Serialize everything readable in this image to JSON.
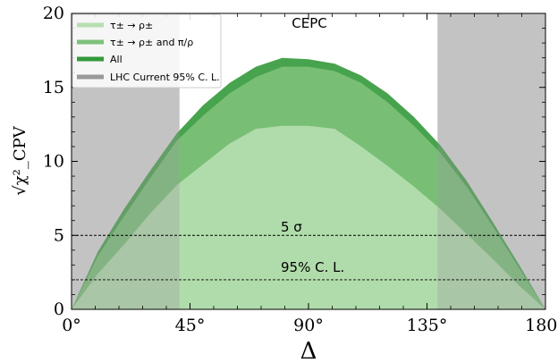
{
  "chart_data": {
    "type": "area",
    "title": "CEPC",
    "xlabel": "Δ",
    "ylabel": "√χ²_CPV",
    "xlim": [
      0,
      180
    ],
    "ylim": [
      0,
      20
    ],
    "x_ticks": [
      "0°",
      "45°",
      "90°",
      "135°",
      "180°"
    ],
    "y_ticks": [
      "0",
      "5",
      "10",
      "15",
      "20"
    ],
    "legend_position": "upper-left",
    "excluded_regions": [
      {
        "name": "LHC Current 95% C. L.",
        "ranges": [
          [
            0,
            41
          ],
          [
            139,
            180
          ]
        ],
        "color": "#d8d8d8"
      }
    ],
    "reference_lines": [
      {
        "y": 5,
        "label": "5 σ"
      },
      {
        "y": 2,
        "label": "95% C. L."
      }
    ],
    "series": [
      {
        "name": "All",
        "color": "#33993a",
        "x": [
          0,
          10,
          20,
          30,
          40,
          50,
          60,
          70,
          80,
          90,
          100,
          110,
          120,
          130,
          140,
          150,
          160,
          170,
          180
        ],
        "y": [
          0,
          3.9,
          6.8,
          9.4,
          11.9,
          13.8,
          15.3,
          16.4,
          17.0,
          16.9,
          16.6,
          15.8,
          14.6,
          13.0,
          11.1,
          8.7,
          5.9,
          3.0,
          0
        ]
      },
      {
        "name": "τ± → ρ± and π/ρ",
        "color": "#7dc27a",
        "x": [
          0,
          10,
          20,
          30,
          40,
          50,
          60,
          70,
          80,
          90,
          100,
          110,
          120,
          130,
          140,
          150,
          160,
          170,
          180
        ],
        "y": [
          0,
          3.6,
          6.3,
          8.9,
          11.4,
          13.1,
          14.6,
          15.7,
          16.4,
          16.4,
          16.1,
          15.3,
          14.0,
          12.4,
          10.6,
          8.3,
          5.6,
          2.8,
          0
        ]
      },
      {
        "name": "τ± → ρ±",
        "color": "#b6dfb1",
        "x": [
          0,
          10,
          20,
          30,
          40,
          50,
          60,
          70,
          80,
          90,
          100,
          110,
          120,
          130,
          140,
          150,
          160,
          170,
          180
        ],
        "y": [
          0,
          2.4,
          4.4,
          6.5,
          8.4,
          9.8,
          11.2,
          12.2,
          12.4,
          12.4,
          12.2,
          11.0,
          9.7,
          8.3,
          6.8,
          5.1,
          3.4,
          1.6,
          0
        ]
      }
    ]
  }
}
